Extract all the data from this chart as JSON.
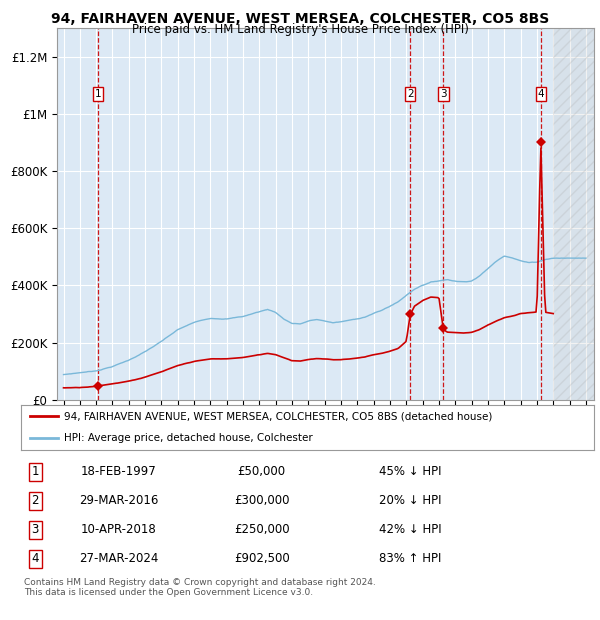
{
  "title_line1": "94, FAIRHAVEN AVENUE, WEST MERSEA, COLCHESTER, CO5 8BS",
  "title_line2": "Price paid vs. HM Land Registry's House Price Index (HPI)",
  "background_color": "#dce9f5",
  "fig_bg_color": "#ffffff",
  "hpi_line_color": "#7ab8d9",
  "price_line_color": "#cc0000",
  "marker_color": "#cc0000",
  "dashed_line_color": "#cc0000",
  "grid_color": "#ffffff",
  "ylim": [
    0,
    1300000
  ],
  "xlim_start": 1994.6,
  "xlim_end": 2027.5,
  "sales": [
    {
      "label": "1",
      "year": 1997.12,
      "price": 50000
    },
    {
      "label": "2",
      "year": 2016.24,
      "price": 300000
    },
    {
      "label": "3",
      "year": 2018.27,
      "price": 250000
    },
    {
      "label": "4",
      "year": 2024.24,
      "price": 902500
    }
  ],
  "legend_entries": [
    {
      "label": "94, FAIRHAVEN AVENUE, WEST MERSEA, COLCHESTER, CO5 8BS (detached house)",
      "color": "#cc0000"
    },
    {
      "label": "HPI: Average price, detached house, Colchester",
      "color": "#7ab8d9"
    }
  ],
  "table_rows": [
    {
      "num": "1",
      "date": "18-FEB-1997",
      "price": "£50,000",
      "hpi": "45% ↓ HPI"
    },
    {
      "num": "2",
      "date": "29-MAR-2016",
      "price": "£300,000",
      "hpi": "20% ↓ HPI"
    },
    {
      "num": "3",
      "date": "10-APR-2018",
      "price": "£250,000",
      "hpi": "42% ↓ HPI"
    },
    {
      "num": "4",
      "date": "27-MAR-2024",
      "price": "£902,500",
      "hpi": "83% ↑ HPI"
    }
  ],
  "footer": "Contains HM Land Registry data © Crown copyright and database right 2024.\nThis data is licensed under the Open Government Licence v3.0.",
  "future_hatch_start": 2025.0,
  "yticks": [
    0,
    200000,
    400000,
    600000,
    800000,
    1000000,
    1200000
  ],
  "ytick_labels": [
    "£0",
    "£200K",
    "£400K",
    "£600K",
    "£800K",
    "£1M",
    "£1.2M"
  ],
  "hpi_control_points": [
    [
      1995.0,
      88000
    ],
    [
      1996.0,
      95000
    ],
    [
      1997.0,
      102000
    ],
    [
      1998.0,
      118000
    ],
    [
      1999.0,
      140000
    ],
    [
      2000.0,
      170000
    ],
    [
      2001.0,
      205000
    ],
    [
      2002.0,
      245000
    ],
    [
      2003.0,
      270000
    ],
    [
      2004.0,
      285000
    ],
    [
      2005.0,
      285000
    ],
    [
      2006.0,
      293000
    ],
    [
      2007.0,
      310000
    ],
    [
      2007.5,
      318000
    ],
    [
      2008.0,
      308000
    ],
    [
      2008.5,
      285000
    ],
    [
      2009.0,
      270000
    ],
    [
      2009.5,
      268000
    ],
    [
      2010.0,
      278000
    ],
    [
      2010.5,
      283000
    ],
    [
      2011.0,
      278000
    ],
    [
      2011.5,
      272000
    ],
    [
      2012.0,
      275000
    ],
    [
      2012.5,
      280000
    ],
    [
      2013.0,
      285000
    ],
    [
      2013.5,
      293000
    ],
    [
      2014.0,
      305000
    ],
    [
      2014.5,
      315000
    ],
    [
      2015.0,
      330000
    ],
    [
      2015.5,
      345000
    ],
    [
      2016.0,
      368000
    ],
    [
      2016.5,
      390000
    ],
    [
      2017.0,
      405000
    ],
    [
      2017.5,
      415000
    ],
    [
      2018.0,
      420000
    ],
    [
      2018.5,
      425000
    ],
    [
      2019.0,
      420000
    ],
    [
      2019.5,
      418000
    ],
    [
      2020.0,
      422000
    ],
    [
      2020.5,
      440000
    ],
    [
      2021.0,
      465000
    ],
    [
      2021.5,
      490000
    ],
    [
      2022.0,
      510000
    ],
    [
      2022.5,
      505000
    ],
    [
      2023.0,
      495000
    ],
    [
      2023.5,
      488000
    ],
    [
      2024.0,
      490000
    ],
    [
      2024.5,
      500000
    ],
    [
      2025.0,
      505000
    ],
    [
      2026.0,
      505000
    ],
    [
      2027.0,
      505000
    ]
  ],
  "prop_control_points": [
    [
      1995.0,
      42000
    ],
    [
      1996.0,
      44000
    ],
    [
      1997.12,
      50000
    ],
    [
      1998.0,
      58000
    ],
    [
      1999.0,
      68000
    ],
    [
      2000.0,
      82000
    ],
    [
      2001.0,
      100000
    ],
    [
      2002.0,
      120000
    ],
    [
      2003.0,
      135000
    ],
    [
      2004.0,
      143000
    ],
    [
      2005.0,
      143000
    ],
    [
      2006.0,
      148000
    ],
    [
      2007.0,
      157000
    ],
    [
      2007.5,
      162000
    ],
    [
      2008.0,
      158000
    ],
    [
      2008.5,
      148000
    ],
    [
      2009.0,
      138000
    ],
    [
      2009.5,
      137000
    ],
    [
      2010.0,
      143000
    ],
    [
      2010.5,
      146000
    ],
    [
      2011.0,
      144000
    ],
    [
      2011.5,
      141000
    ],
    [
      2012.0,
      142000
    ],
    [
      2012.5,
      145000
    ],
    [
      2013.0,
      148000
    ],
    [
      2013.5,
      153000
    ],
    [
      2014.0,
      160000
    ],
    [
      2014.5,
      165000
    ],
    [
      2015.0,
      172000
    ],
    [
      2015.5,
      182000
    ],
    [
      2016.0,
      207000
    ],
    [
      2016.24,
      300000
    ],
    [
      2016.5,
      330000
    ],
    [
      2017.0,
      350000
    ],
    [
      2017.5,
      362000
    ],
    [
      2018.0,
      360000
    ],
    [
      2018.27,
      250000
    ],
    [
      2018.5,
      240000
    ],
    [
      2019.0,
      238000
    ],
    [
      2019.5,
      237000
    ],
    [
      2020.0,
      240000
    ],
    [
      2020.5,
      250000
    ],
    [
      2021.0,
      265000
    ],
    [
      2021.5,
      278000
    ],
    [
      2022.0,
      290000
    ],
    [
      2022.5,
      295000
    ],
    [
      2023.0,
      305000
    ],
    [
      2023.5,
      308000
    ],
    [
      2024.0,
      310000
    ],
    [
      2024.24,
      902500
    ],
    [
      2024.5,
      310000
    ],
    [
      2025.0,
      305000
    ]
  ]
}
